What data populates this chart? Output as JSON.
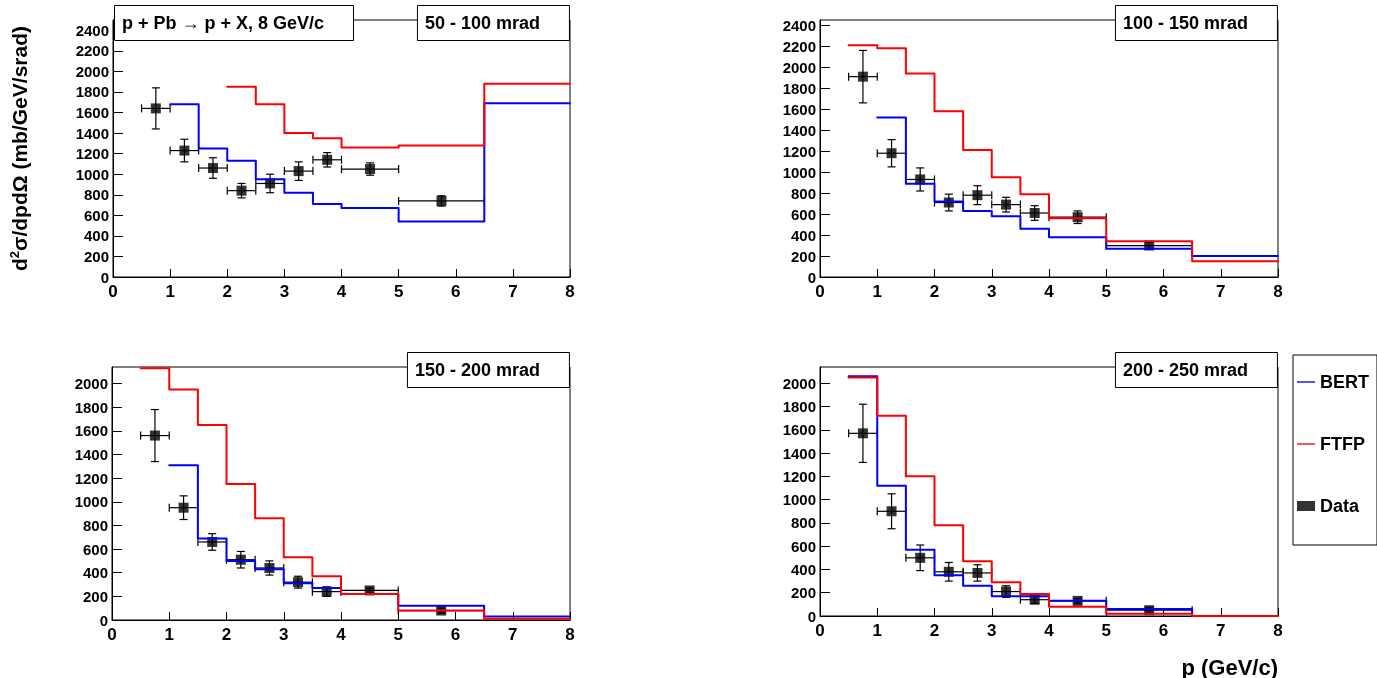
{
  "chart_data": [
    {
      "type": "step",
      "title": "50 - 100 mrad",
      "ylabel": "d$^{2}$σ/dpdΩ (mb/GeV/srad)",
      "annotations": [
        "p + Pb → p + X, 8 GeV/c"
      ],
      "xlim": [
        0,
        8
      ],
      "xticks": [
        0,
        1,
        2,
        3,
        4,
        5,
        6,
        7,
        8
      ],
      "ylim": [
        0,
        2500
      ],
      "yticks": [
        0,
        200,
        400,
        600,
        800,
        1000,
        1200,
        1400,
        1600,
        1800,
        2000,
        2200,
        2400
      ],
      "grid": false,
      "series": [
        {
          "color": "#0000ff",
          "x": [
            1,
            1.5,
            2,
            2.5,
            3,
            3.5,
            4,
            5,
            6.5,
            8
          ],
          "values": [
            1680,
            1250,
            1130,
            950,
            820,
            710,
            670,
            540,
            1690,
            1690
          ]
        },
        {
          "color": "#ff0000",
          "x": [
            2,
            2.5,
            3,
            3.5,
            4,
            5,
            6.5,
            8
          ],
          "values": [
            1850,
            1680,
            1400,
            1350,
            1260,
            1280,
            1880,
            1880
          ]
        },
        {
          "type": "scatter",
          "marker": "square",
          "color": "#000000",
          "x": [
            0.75,
            1.25,
            1.75,
            2.25,
            2.75,
            3.25,
            3.75,
            4.5,
            5.75
          ],
          "values": [
            1640,
            1230,
            1060,
            840,
            910,
            1030,
            1140,
            1050,
            740
          ],
          "errors": [
            200,
            110,
            100,
            70,
            90,
            90,
            70,
            60,
            50
          ],
          "xerrors": [
            0.25,
            0.25,
            0.25,
            0.25,
            0.25,
            0.25,
            0.25,
            0.5,
            0.75
          ]
        }
      ]
    },
    {
      "type": "step",
      "title": "100 - 150 mrad",
      "xlim": [
        0,
        8
      ],
      "xticks": [
        0,
        1,
        2,
        3,
        4,
        5,
        6,
        7,
        8
      ],
      "ylim": [
        0,
        2450
      ],
      "yticks": [
        0,
        200,
        400,
        600,
        800,
        1000,
        1200,
        1400,
        1600,
        1800,
        2000,
        2200,
        2400
      ],
      "grid": false,
      "series": [
        {
          "color": "#0000ff",
          "x": [
            1,
            1.5,
            2,
            2.5,
            3,
            3.5,
            4,
            5,
            6.5,
            8
          ],
          "values": [
            1520,
            890,
            720,
            630,
            580,
            460,
            380,
            270,
            200,
            200
          ]
        },
        {
          "color": "#ff0000",
          "x": [
            0.5,
            1,
            1.5,
            2,
            2.5,
            3,
            3.5,
            4,
            5,
            6.5,
            8
          ],
          "values": [
            2210,
            2180,
            1940,
            1580,
            1210,
            950,
            790,
            560,
            340,
            150,
            150
          ]
        },
        {
          "type": "scatter",
          "marker": "square",
          "color": "#000000",
          "x": [
            0.75,
            1.25,
            1.75,
            2.25,
            2.75,
            3.25,
            3.75,
            4.5,
            5.75
          ],
          "values": [
            1910,
            1180,
            930,
            710,
            780,
            690,
            610,
            570,
            300
          ],
          "errors": [
            250,
            130,
            110,
            80,
            90,
            70,
            70,
            60,
            30
          ],
          "xerrors": [
            0.25,
            0.25,
            0.25,
            0.25,
            0.25,
            0.25,
            0.25,
            0.5,
            0.75
          ]
        }
      ]
    },
    {
      "type": "step",
      "title": "150 - 200 mrad",
      "xlim": [
        0,
        8
      ],
      "xticks": [
        0,
        1,
        2,
        3,
        4,
        5,
        6,
        7,
        8
      ],
      "ylim": [
        0,
        2140
      ],
      "yticks": [
        0,
        200,
        400,
        600,
        800,
        1000,
        1200,
        1400,
        1600,
        1800,
        2000
      ],
      "grid": false,
      "series": [
        {
          "color": "#0000ff",
          "x": [
            1,
            1.5,
            2,
            2.5,
            3,
            3.5,
            4,
            5,
            6.5,
            8
          ],
          "values": [
            1310,
            690,
            500,
            430,
            310,
            270,
            220,
            120,
            30,
            30
          ]
        },
        {
          "color": "#ff0000",
          "x": [
            0.5,
            1,
            1.5,
            2,
            2.5,
            3,
            3.5,
            4,
            5,
            6.5,
            8
          ],
          "values": [
            2130,
            1950,
            1650,
            1150,
            860,
            530,
            370,
            220,
            80,
            10,
            10
          ]
        },
        {
          "type": "scatter",
          "marker": "square",
          "color": "#000000",
          "x": [
            0.75,
            1.25,
            1.75,
            2.25,
            2.75,
            3.25,
            3.75,
            4.5,
            5.75
          ],
          "values": [
            1560,
            950,
            660,
            510,
            440,
            320,
            240,
            250,
            80
          ],
          "errors": [
            220,
            100,
            70,
            70,
            60,
            50,
            40,
            20,
            20
          ],
          "xerrors": [
            0.25,
            0.25,
            0.25,
            0.25,
            0.25,
            0.25,
            0.25,
            0.5,
            0.75
          ]
        }
      ]
    },
    {
      "type": "step",
      "title": "200 - 250 mrad",
      "xlabel": "p (GeV/c)",
      "legend": "right",
      "xlim": [
        0,
        8
      ],
      "xticks": [
        0,
        1,
        2,
        3,
        4,
        5,
        6,
        7,
        8
      ],
      "ylim": [
        0,
        2140
      ],
      "yticks": [
        0,
        200,
        400,
        600,
        800,
        1000,
        1200,
        1400,
        1600,
        1800,
        2000
      ],
      "grid": false,
      "series": [
        {
          "name": "BERT",
          "color": "#0000ff",
          "x": [
            0.5,
            1,
            1.5,
            2,
            2.5,
            3,
            3.5,
            4,
            5,
            6.5,
            8
          ],
          "values": [
            2060,
            1120,
            570,
            350,
            260,
            170,
            170,
            130,
            60,
            0,
            0
          ]
        },
        {
          "name": "FTFP",
          "color": "#ff0000",
          "x": [
            0.5,
            1,
            1.5,
            2,
            2.5,
            3,
            3.5,
            4,
            5,
            6.5,
            8
          ],
          "values": [
            2050,
            1720,
            1200,
            780,
            470,
            290,
            190,
            80,
            20,
            0,
            0
          ]
        },
        {
          "name": "Data",
          "type": "scatter",
          "marker": "square",
          "color": "#000000",
          "x": [
            0.75,
            1.25,
            1.75,
            2.25,
            2.75,
            3.25,
            3.75,
            4.5,
            5.75
          ],
          "values": [
            1570,
            900,
            500,
            380,
            370,
            210,
            140,
            130,
            50
          ],
          "errors": [
            250,
            150,
            110,
            80,
            70,
            50,
            30,
            20,
            20
          ],
          "xerrors": [
            0.25,
            0.25,
            0.25,
            0.25,
            0.25,
            0.25,
            0.25,
            0.5,
            0.75
          ]
        }
      ]
    }
  ]
}
